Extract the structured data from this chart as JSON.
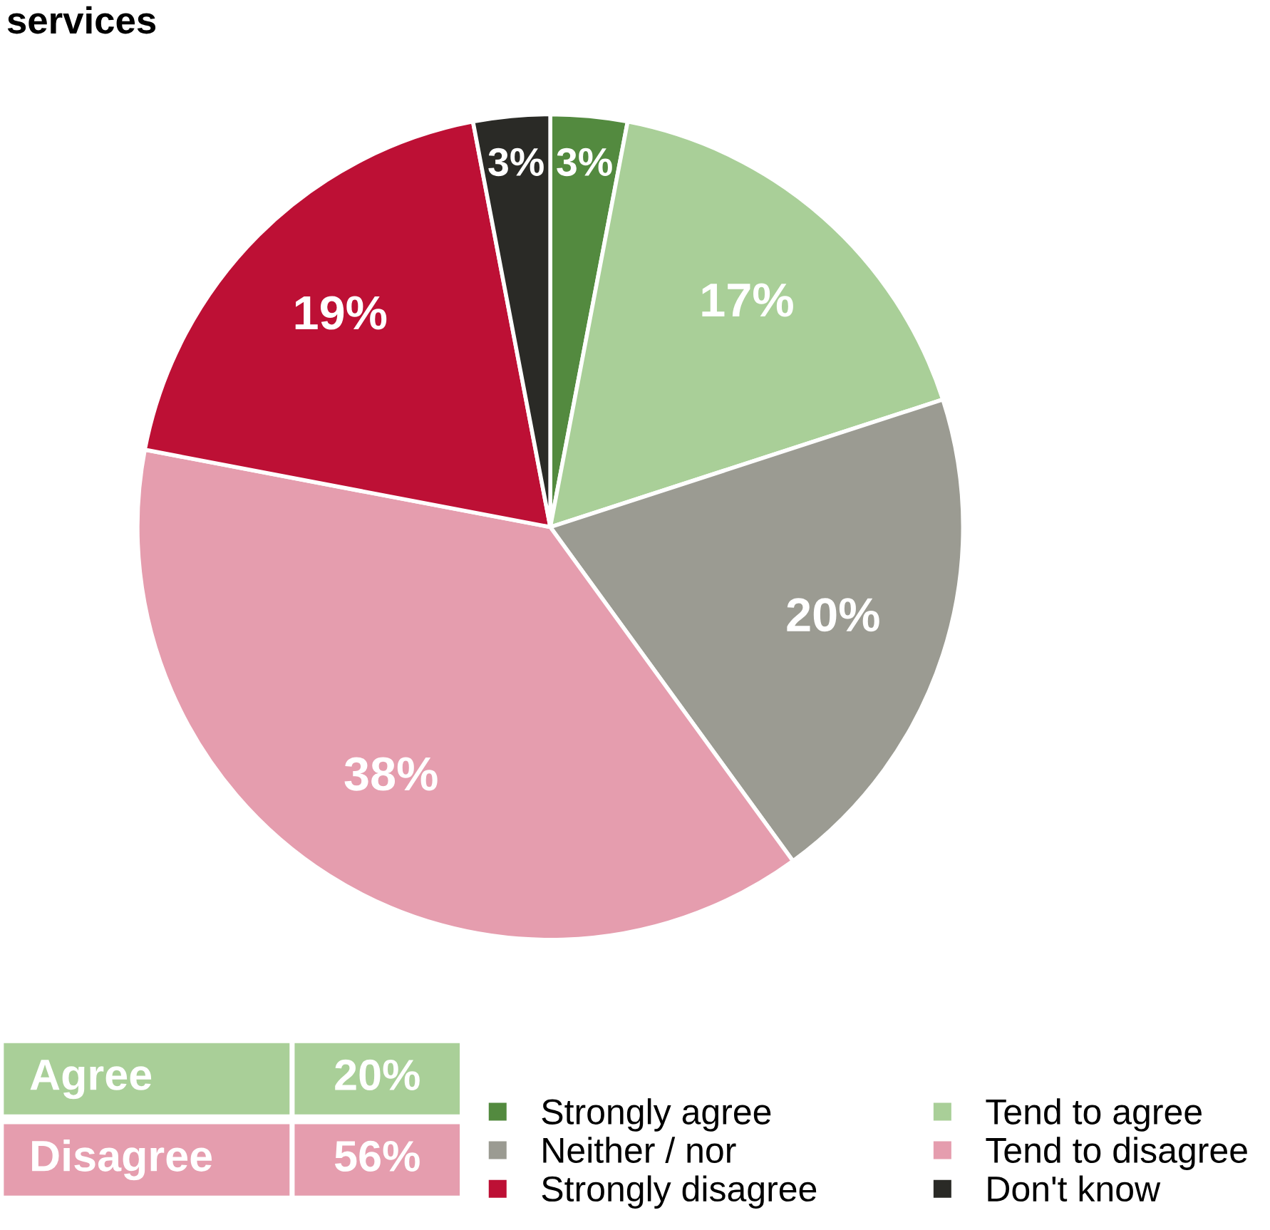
{
  "chart_data": {
    "type": "pie",
    "title": "services",
    "categories": [
      "Strongly agree",
      "Tend to agree",
      "Neither / nor",
      "Tend to disagree",
      "Strongly disagree",
      "Don't know"
    ],
    "values": [
      3,
      17,
      20,
      38,
      19,
      3
    ],
    "colors": [
      "#538a3f",
      "#a9cf98",
      "#9b9b92",
      "#e59dae",
      "#bd1035",
      "#2a2a26"
    ],
    "value_labels": [
      "3%",
      "17%",
      "20%",
      "38%",
      "19%",
      "3%"
    ],
    "annotations": [
      "Agree",
      "20%",
      "Disagree",
      "56%"
    ],
    "legend": "bottom right"
  }
}
